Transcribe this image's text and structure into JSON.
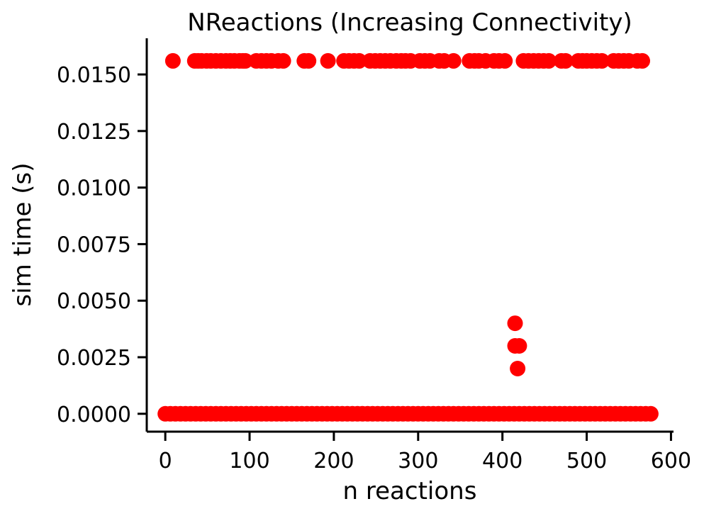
{
  "chart_data": {
    "type": "scatter",
    "title": "NReactions (Increasing Connectivity)",
    "xlabel": "n reactions",
    "ylabel": "sim time (s)",
    "xlim": [
      -22,
      603
    ],
    "ylim": [
      -0.00079,
      0.0166
    ],
    "xticks": [
      0,
      100,
      200,
      300,
      400,
      500,
      600
    ],
    "xtick_labels": [
      "0",
      "100",
      "200",
      "300",
      "400",
      "500",
      "600"
    ],
    "yticks": [
      0,
      0.0025,
      0.005,
      0.0075,
      0.01,
      0.0125,
      0.015
    ],
    "ytick_labels": [
      "0.0000",
      "0.0025",
      "0.0050",
      "0.0075",
      "0.0100",
      "0.0125",
      "0.0150"
    ],
    "grid": false,
    "legend": false,
    "marker_color": "#ff0000",
    "series": [
      {
        "x": [
          9,
          35,
          39,
          43,
          49,
          54,
          60,
          66,
          72,
          77,
          82,
          88,
          92,
          95,
          108,
          114,
          120,
          126,
          134,
          140,
          165,
          170,
          193,
          212,
          218,
          224,
          230,
          243,
          249,
          255,
          261,
          267,
          274,
          280,
          285,
          291,
          302,
          308,
          314,
          325,
          331,
          342,
          361,
          367,
          372,
          380,
          390,
          396,
          403,
          425,
          431,
          437,
          443,
          449,
          455,
          470,
          475,
          490,
          495,
          500,
          506,
          512,
          518,
          532,
          538,
          544,
          550,
          560,
          566
        ],
        "y": [
          0.0156,
          0.0156,
          0.0156,
          0.0156,
          0.0156,
          0.0156,
          0.0156,
          0.0156,
          0.0156,
          0.0156,
          0.0156,
          0.0156,
          0.0156,
          0.0156,
          0.0156,
          0.0156,
          0.0156,
          0.0156,
          0.0156,
          0.0156,
          0.0156,
          0.0156,
          0.0156,
          0.0156,
          0.0156,
          0.0156,
          0.0156,
          0.0156,
          0.0156,
          0.0156,
          0.0156,
          0.0156,
          0.0156,
          0.0156,
          0.0156,
          0.0156,
          0.0156,
          0.0156,
          0.0156,
          0.0156,
          0.0156,
          0.0156,
          0.0156,
          0.0156,
          0.0156,
          0.0156,
          0.0156,
          0.0156,
          0.0156,
          0.0156,
          0.0156,
          0.0156,
          0.0156,
          0.0156,
          0.0156,
          0.0156,
          0.0156,
          0.0156,
          0.0156,
          0.0156,
          0.0156,
          0.0156,
          0.0156,
          0.0156,
          0.0156,
          0.0156,
          0.0156,
          0.0156,
          0.0156
        ]
      },
      {
        "x": [
          415,
          415,
          420,
          418
        ],
        "y": [
          0.004,
          0.003,
          0.003,
          0.002
        ]
      },
      {
        "x": [
          0,
          6,
          12,
          18,
          24,
          30,
          36,
          42,
          48,
          54,
          60,
          66,
          72,
          78,
          84,
          90,
          96,
          102,
          108,
          114,
          120,
          126,
          132,
          138,
          144,
          150,
          156,
          162,
          168,
          174,
          180,
          186,
          192,
          198,
          204,
          210,
          216,
          222,
          228,
          234,
          240,
          246,
          252,
          258,
          264,
          270,
          276,
          282,
          288,
          294,
          300,
          306,
          312,
          318,
          324,
          330,
          336,
          342,
          348,
          354,
          360,
          366,
          372,
          378,
          384,
          390,
          396,
          402,
          408,
          414,
          420,
          426,
          432,
          438,
          444,
          450,
          456,
          462,
          468,
          474,
          480,
          486,
          492,
          498,
          504,
          510,
          516,
          522,
          528,
          534,
          540,
          546,
          552,
          558,
          564,
          570,
          576
        ],
        "y": [
          0,
          0,
          0,
          0,
          0,
          0,
          0,
          0,
          0,
          0,
          0,
          0,
          0,
          0,
          0,
          0,
          0,
          0,
          0,
          0,
          0,
          0,
          0,
          0,
          0,
          0,
          0,
          0,
          0,
          0,
          0,
          0,
          0,
          0,
          0,
          0,
          0,
          0,
          0,
          0,
          0,
          0,
          0,
          0,
          0,
          0,
          0,
          0,
          0,
          0,
          0,
          0,
          0,
          0,
          0,
          0,
          0,
          0,
          0,
          0,
          0,
          0,
          0,
          0,
          0,
          0,
          0,
          0,
          0,
          0,
          0,
          0,
          0,
          0,
          0,
          0,
          0,
          0,
          0,
          0,
          0,
          0,
          0,
          0,
          0,
          0,
          0,
          0,
          0,
          0,
          0,
          0,
          0,
          0,
          0,
          0,
          0
        ]
      }
    ]
  }
}
